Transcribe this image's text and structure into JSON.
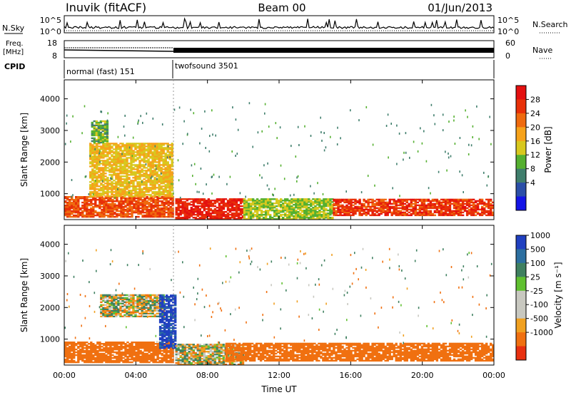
{
  "header": {
    "station": "Inuvik (fitACF)",
    "beam": "Beam 00",
    "date": "01/Jun/2013"
  },
  "sky_panel": {
    "left_label": "N.Sky",
    "right_label": "N.Search",
    "left_ticks": [
      "10^5",
      "10^0"
    ],
    "right_ticks": [
      "10^5",
      "10^0"
    ]
  },
  "freq_panel": {
    "left_label_1": "Freq.",
    "left_label_2": "[MHz]",
    "right_label": "Nave",
    "left_ticks": [
      "18",
      "8"
    ],
    "right_ticks": [
      "60",
      "0"
    ]
  },
  "cpid_panel": {
    "label": "CPID",
    "segments": [
      {
        "name": "normal (fast) 151",
        "start_hour": 0,
        "end_hour": 6.1
      },
      {
        "name": "twofsound 3501",
        "start_hour": 6.1,
        "end_hour": 24
      }
    ]
  },
  "x_axis": {
    "label": "Time UT",
    "ticks": [
      "00:00",
      "04:00",
      "08:00",
      "12:00",
      "16:00",
      "20:00",
      "00:00"
    ]
  },
  "power_panel": {
    "ylabel": "Slant Range [km]",
    "yticks": [
      "1000",
      "2000",
      "3000",
      "4000"
    ],
    "colorbar_label": "Power [dB]",
    "colorbar_ticks": [
      "4",
      "8",
      "12",
      "16",
      "20",
      "24",
      "28"
    ],
    "colors": [
      "#1414e6",
      "#2b4fa8",
      "#3f7e6c",
      "#55b030",
      "#d8c81e",
      "#f6a21a",
      "#ef6a0e",
      "#e83008",
      "#e41010"
    ]
  },
  "velocity_panel": {
    "ylabel": "Slant Range [km]",
    "yticks": [
      "1000",
      "2000",
      "3000",
      "4000"
    ],
    "colorbar_label": "Velocity [m s⁻¹]",
    "colorbar_ticks": [
      "1000",
      "500",
      "100",
      "25",
      "-25",
      "-100",
      "-500",
      "-1000"
    ],
    "colors": [
      "#2040c0",
      "#2c6fa0",
      "#3f8060",
      "#60c030",
      "#c8c8c0",
      "#c8c8c0",
      "#f0a020",
      "#f07010",
      "#e83010"
    ]
  },
  "chart_data": {
    "type": "heatmap",
    "x_range_hours": [
      0,
      24
    ],
    "y_range_km": [
      180,
      4600
    ],
    "power_regions": [
      {
        "t0": 0.0,
        "t1": 6.1,
        "r0": 250,
        "r1": 900,
        "dB": 26
      },
      {
        "t0": 1.4,
        "t1": 6.0,
        "r0": 900,
        "r1": 2600,
        "dB": 18
      },
      {
        "t0": 1.5,
        "t1": 2.4,
        "r0": 2600,
        "r1": 3300,
        "dB": 12
      },
      {
        "t0": 6.2,
        "t1": 10.0,
        "r0": 180,
        "r1": 850,
        "dB": 30
      },
      {
        "t0": 10.0,
        "t1": 15.0,
        "r0": 180,
        "r1": 850,
        "dB": 14
      },
      {
        "t0": 15.0,
        "t1": 24.0,
        "r0": 300,
        "r1": 800,
        "dB": 28
      }
    ],
    "velocity_regions": [
      {
        "t0": 0.0,
        "t1": 6.1,
        "r0": 250,
        "r1": 900,
        "v": -300
      },
      {
        "t0": 2.0,
        "t1": 5.5,
        "r0": 1700,
        "r1": 2400,
        "v": 0
      },
      {
        "t0": 5.3,
        "t1": 6.2,
        "r0": 700,
        "r1": 2400,
        "v": 800
      },
      {
        "t0": 6.2,
        "t1": 10.0,
        "r0": 180,
        "r1": 850,
        "v": 0
      },
      {
        "t0": 9.0,
        "t1": 24.0,
        "r0": 300,
        "r1": 850,
        "v": -300
      }
    ]
  }
}
